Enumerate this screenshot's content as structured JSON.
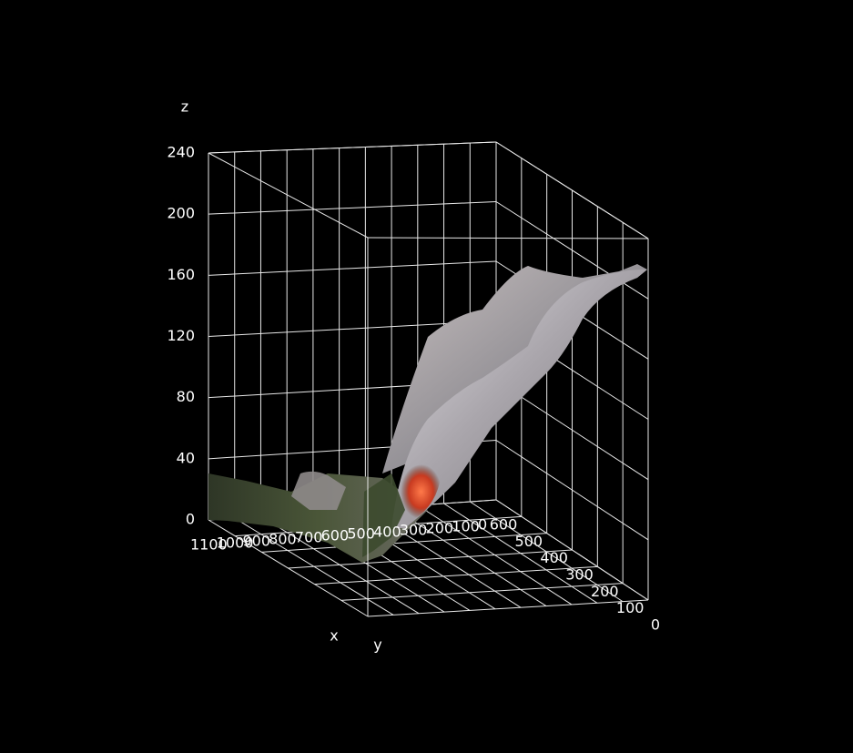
{
  "chart_data": {
    "type": "surface",
    "title": "",
    "xlabel": "x",
    "ylabel": "y",
    "zlabel": "z",
    "xlim": [
      0,
      1100
    ],
    "ylim": [
      0,
      600
    ],
    "zlim": [
      0,
      240
    ],
    "x_ticks": [
      "0",
      "100",
      "200",
      "300",
      "400",
      "500",
      "600",
      "700",
      "800",
      "900",
      "1000",
      "1100"
    ],
    "y_ticks": [
      "600",
      "500",
      "400",
      "300",
      "200",
      "100",
      "0"
    ],
    "z_ticks": [
      "0",
      "40",
      "80",
      "120",
      "160",
      "200",
      "240"
    ],
    "grid": true,
    "surface_texture": "photographic",
    "colors": {
      "background": "#000000",
      "grid": "#e8e8e8",
      "text": "#ffffff",
      "surface_light": "#d8d8e0",
      "surface_mid": "#a8a4a8",
      "surface_dark": "#3c4a2e",
      "surface_hot": "#e05030"
    }
  }
}
